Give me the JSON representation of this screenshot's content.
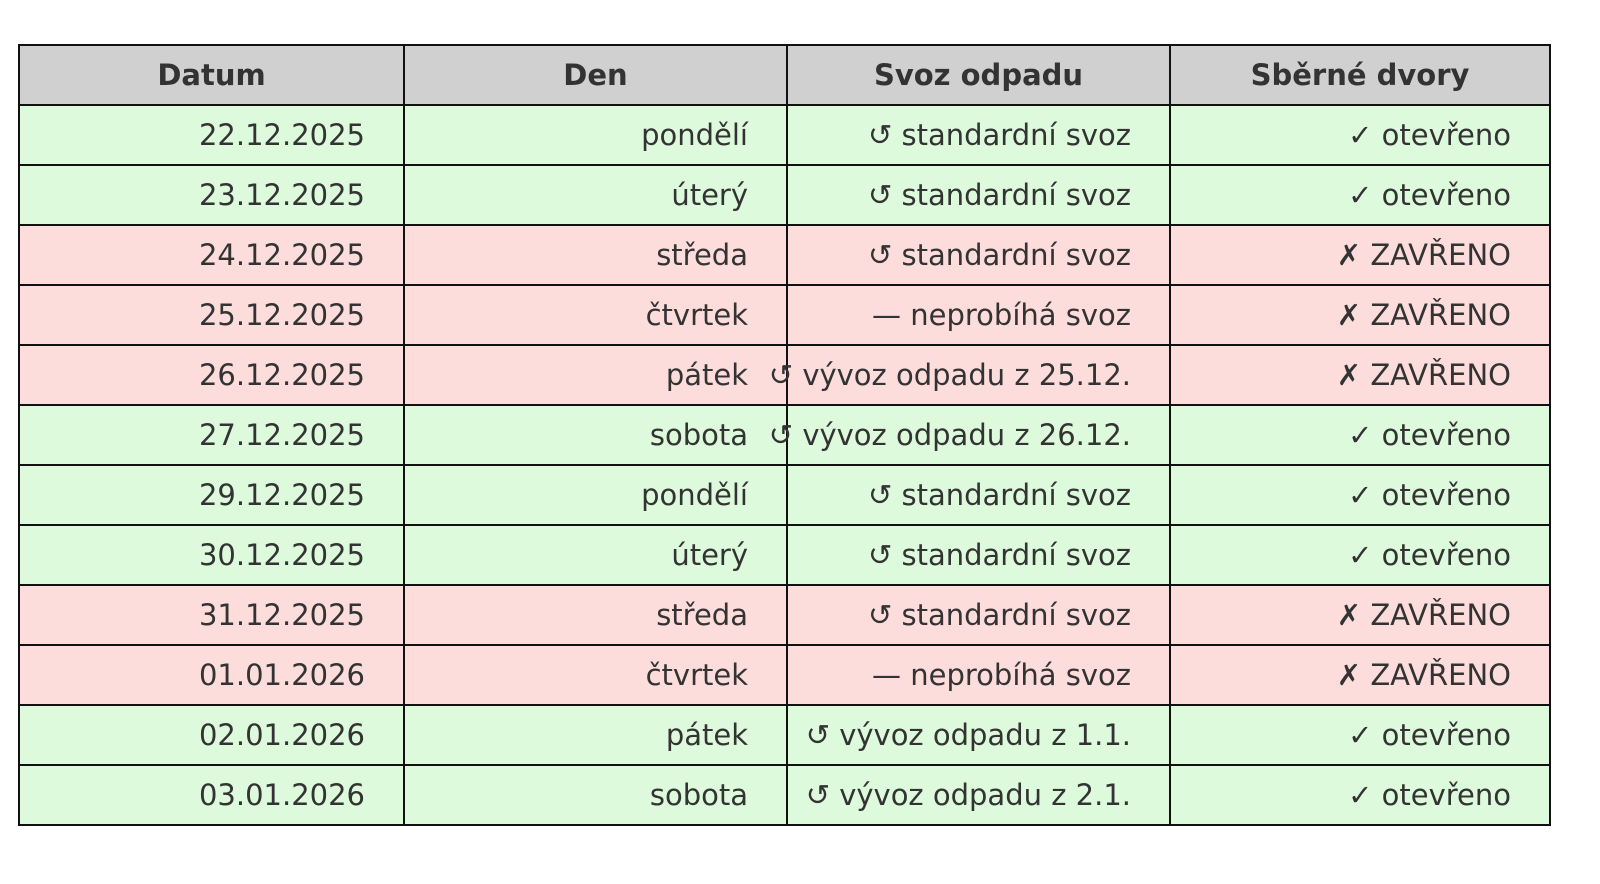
{
  "colors": {
    "header": "#d0d0d0",
    "open": "#ddfbdc",
    "closed": "#fddcdc"
  },
  "headers": [
    "Datum",
    "Den",
    "Svoz odpadu",
    "Sběrné dvory"
  ],
  "rows": [
    {
      "date": "22.12.2025",
      "day": "pondělí",
      "collection": "↺ standardní svoz",
      "yard": "✓ otevřeno",
      "status": "open"
    },
    {
      "date": "23.12.2025",
      "day": "úterý",
      "collection": "↺ standardní svoz",
      "yard": "✓ otevřeno",
      "status": "open"
    },
    {
      "date": "24.12.2025",
      "day": "středa",
      "collection": "↺ standardní svoz",
      "yard": "✗ ZAVŘENO",
      "status": "closed"
    },
    {
      "date": "25.12.2025",
      "day": "čtvrtek",
      "collection": "— neprobíhá svoz",
      "yard": "✗ ZAVŘENO",
      "status": "closed"
    },
    {
      "date": "26.12.2025",
      "day": "pátek",
      "collection": "↺ vývoz odpadu z 25.12.",
      "yard": "✗ ZAVŘENO",
      "status": "closed"
    },
    {
      "date": "27.12.2025",
      "day": "sobota",
      "collection": "↺ vývoz odpadu z 26.12.",
      "yard": "✓ otevřeno",
      "status": "open"
    },
    {
      "date": "29.12.2025",
      "day": "pondělí",
      "collection": "↺ standardní svoz",
      "yard": "✓ otevřeno",
      "status": "open"
    },
    {
      "date": "30.12.2025",
      "day": "úterý",
      "collection": "↺ standardní svoz",
      "yard": "✓ otevřeno",
      "status": "open"
    },
    {
      "date": "31.12.2025",
      "day": "středa",
      "collection": "↺ standardní svoz",
      "yard": "✗ ZAVŘENO",
      "status": "closed"
    },
    {
      "date": "01.01.2026",
      "day": "čtvrtek",
      "collection": "— neprobíhá svoz",
      "yard": "✗ ZAVŘENO",
      "status": "closed"
    },
    {
      "date": "02.01.2026",
      "day": "pátek",
      "collection": "↺ vývoz odpadu z 1.1.",
      "yard": "✓ otevřeno",
      "status": "open"
    },
    {
      "date": "03.01.2026",
      "day": "sobota",
      "collection": "↺ vývoz odpadu z 2.1.",
      "yard": "✓ otevřeno",
      "status": "open"
    }
  ]
}
